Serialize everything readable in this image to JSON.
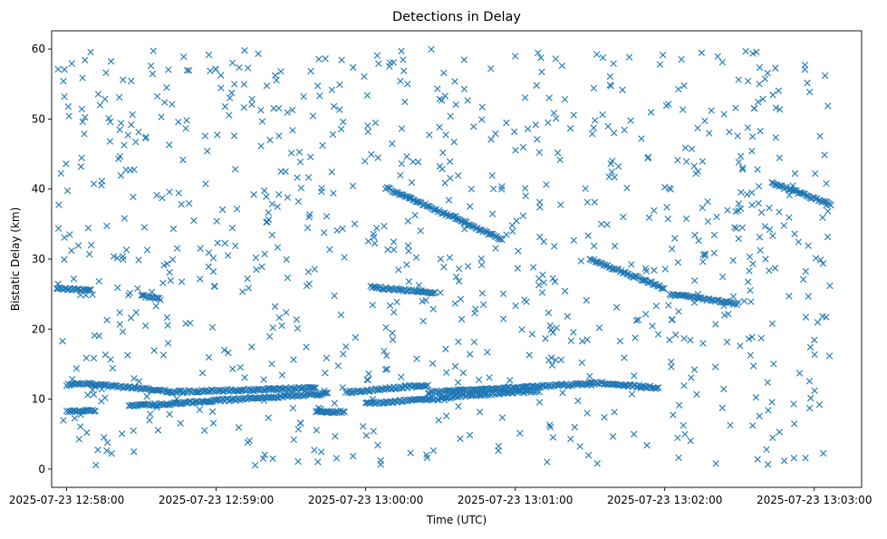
{
  "chart_data": {
    "type": "scatter",
    "title": "Detections in Delay",
    "xlabel": "Time (UTC)",
    "ylabel": "Bistatic Delay (km)",
    "x_unit": "time (UTC)",
    "xlim": [
      "2025-07-23 12:57:54",
      "2025-07-23 13:03:19"
    ],
    "ylim": [
      -2.6,
      62.6
    ],
    "x_ticks": [
      "2025-07-23 12:58:00",
      "2025-07-23 12:59:00",
      "2025-07-23 13:00:00",
      "2025-07-23 13:01:00",
      "2025-07-23 13:02:00",
      "2025-07-23 13:03:00"
    ],
    "y_ticks": [
      0,
      10,
      20,
      30,
      40,
      50,
      60
    ],
    "grid": false,
    "marker": "x",
    "series": [
      {
        "color": "#1f77b4",
        "tracks": [
          {
            "start": "2025-07-23 12:58:00",
            "end": "2025-07-23 12:58:10",
            "y_start": 12.0,
            "y_end": 12.3
          },
          {
            "start": "2025-07-23 12:58:10",
            "end": "2025-07-23 12:58:40",
            "y_start": 12.1,
            "y_end": 11.2
          },
          {
            "start": "2025-07-23 12:58:40",
            "end": "2025-07-23 12:59:40",
            "y_start": 11.0,
            "y_end": 11.6
          },
          {
            "start": "2025-07-23 12:59:52",
            "end": "2025-07-23 13:00:25",
            "y_start": 11.0,
            "y_end": 12.0
          },
          {
            "start": "2025-07-23 13:00:25",
            "end": "2025-07-23 13:01:30",
            "y_start": 11.0,
            "y_end": 12.2
          },
          {
            "start": "2025-07-23 13:01:30",
            "end": "2025-07-23 13:01:58",
            "y_start": 12.4,
            "y_end": 11.6
          },
          {
            "start": "2025-07-23 12:58:00",
            "end": "2025-07-23 12:58:12",
            "y_start": 8.2,
            "y_end": 8.4
          },
          {
            "start": "2025-07-23 12:58:25",
            "end": "2025-07-23 12:59:45",
            "y_start": 9.0,
            "y_end": 10.8
          },
          {
            "start": "2025-07-23 12:59:40",
            "end": "2025-07-23 12:59:52",
            "y_start": 8.2,
            "y_end": 8.2
          },
          {
            "start": "2025-07-23 13:00:00",
            "end": "2025-07-23 13:00:35",
            "y_start": 9.4,
            "y_end": 10.2
          },
          {
            "start": "2025-07-23 13:00:35",
            "end": "2025-07-23 13:01:10",
            "y_start": 10.4,
            "y_end": 11.2
          },
          {
            "start": "2025-07-23 12:57:56",
            "end": "2025-07-23 12:58:10",
            "y_start": 25.8,
            "y_end": 25.5
          },
          {
            "start": "2025-07-23 12:58:30",
            "end": "2025-07-23 12:58:38",
            "y_start": 24.8,
            "y_end": 24.3
          },
          {
            "start": "2025-07-23 13:00:02",
            "end": "2025-07-23 13:00:28",
            "y_start": 26.0,
            "y_end": 25.2
          },
          {
            "start": "2025-07-23 13:00:08",
            "end": "2025-07-23 13:00:55",
            "y_start": 40.2,
            "y_end": 32.8
          },
          {
            "start": "2025-07-23 13:01:30",
            "end": "2025-07-23 13:02:00",
            "y_start": 30.0,
            "y_end": 25.8
          },
          {
            "start": "2025-07-23 13:02:02",
            "end": "2025-07-23 13:02:30",
            "y_start": 25.0,
            "y_end": 23.6
          },
          {
            "start": "2025-07-23 13:02:43",
            "end": "2025-07-23 13:03:07",
            "y_start": 40.8,
            "y_end": 37.8
          }
        ],
        "clutter": {
          "approx_points": 900,
          "x_range": [
            "2025-07-23 12:57:56",
            "2025-07-23 13:03:07"
          ],
          "y_range": [
            0.5,
            60
          ]
        }
      }
    ]
  }
}
